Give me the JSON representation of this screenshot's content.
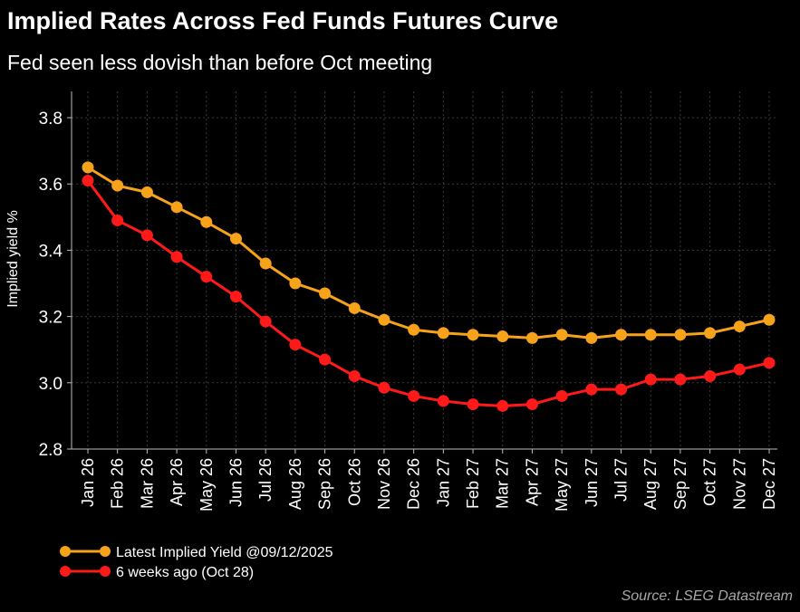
{
  "title": "Implied Rates Across Fed Funds Futures Curve",
  "subtitle": "Fed seen less dovish than before Oct meeting",
  "source": "Source: LSEG Datastream",
  "chart_data": {
    "type": "line",
    "title": "Implied Rates Across Fed Funds Futures Curve",
    "subtitle": "Fed seen less dovish than before Oct meeting",
    "xlabel": "",
    "ylabel": "Implied yield %",
    "ylim": [
      2.8,
      3.8
    ],
    "yticks": [
      2.8,
      3.0,
      3.2,
      3.4,
      3.6,
      3.8
    ],
    "yticklabels": [
      "2.8",
      "3.0",
      "3.2",
      "3.4",
      "3.6",
      "3.8"
    ],
    "grid": true,
    "legend_position": "bottom-left",
    "categories": [
      "Jan 26",
      "Feb 26",
      "Mar 26",
      "Apr 26",
      "May 26",
      "Jun 26",
      "Jul 26",
      "Aug 26",
      "Sep 26",
      "Oct 26",
      "Nov 26",
      "Dec 26",
      "Jan 27",
      "Feb 27",
      "Mar 27",
      "Apr 27",
      "May 27",
      "Jun 27",
      "Jul 27",
      "Aug 27",
      "Sep 27",
      "Oct 27",
      "Nov 27",
      "Dec 27"
    ],
    "series": [
      {
        "name": "Latest Implied Yield @09/12/2025",
        "color": "#f7a21b",
        "values": [
          3.65,
          3.595,
          3.575,
          3.53,
          3.485,
          3.435,
          3.36,
          3.3,
          3.27,
          3.225,
          3.19,
          3.16,
          3.15,
          3.145,
          3.14,
          3.135,
          3.145,
          3.135,
          3.145,
          3.145,
          3.145,
          3.15,
          3.17,
          3.19
        ]
      },
      {
        "name": "6 weeks ago (Oct 28)",
        "color": "#ff1a1a",
        "values": [
          3.61,
          3.49,
          3.445,
          3.38,
          3.32,
          3.26,
          3.185,
          3.115,
          3.07,
          3.02,
          2.985,
          2.96,
          2.945,
          2.935,
          2.93,
          2.935,
          2.96,
          2.98,
          2.98,
          3.01,
          3.01,
          3.02,
          3.04,
          3.06
        ]
      }
    ]
  }
}
